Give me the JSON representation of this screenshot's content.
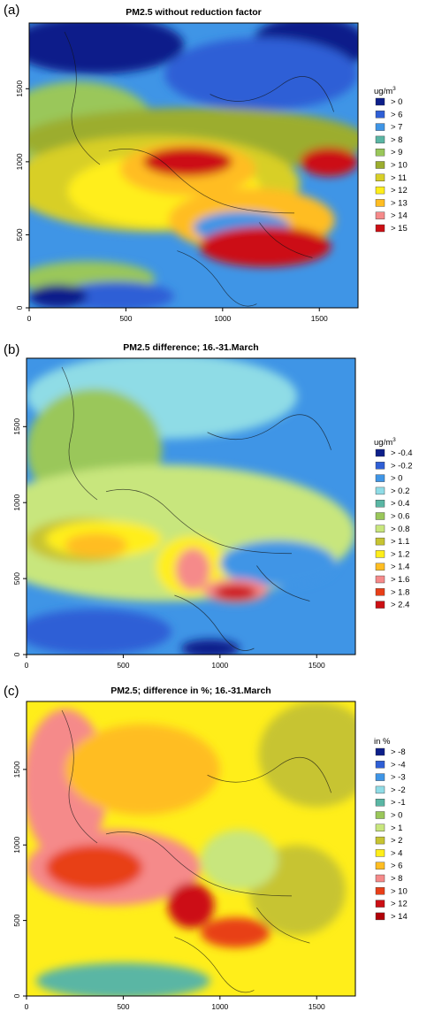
{
  "chart_data": [
    {
      "panel": "(a)",
      "type": "heatmap",
      "title": "PM2.5 without reduction factor",
      "legend_title": "ug/m",
      "legend_title_sup": "3",
      "legend_placement": "right",
      "x_ticks": [
        0,
        500,
        1000,
        1500
      ],
      "y_ticks": [
        0,
        500,
        1000,
        1500
      ],
      "xlim": [
        0,
        1700
      ],
      "ylim": [
        0,
        1950
      ],
      "bins": [
        {
          "label": "> 0",
          "color": "#0d1f8a"
        },
        {
          "label": "> 6",
          "color": "#2f5fd6"
        },
        {
          "label": "> 7",
          "color": "#3f95e6"
        },
        {
          "label": "> 8",
          "color": "#5ab6a4"
        },
        {
          "label": "> 9",
          "color": "#9ac75a"
        },
        {
          "label": "> 10",
          "color": "#9cad2e"
        },
        {
          "label": "> 11",
          "color": "#d8cf28"
        },
        {
          "label": "> 12",
          "color": "#ffee1a"
        },
        {
          "label": "> 13",
          "color": "#ffbd22"
        },
        {
          "label": "> 14",
          "color": "#f58a8a"
        },
        {
          "label": "> 15",
          "color": "#cc0f14"
        }
      ],
      "background_bin": 2,
      "regions": [
        {
          "bin": 0,
          "x": 350,
          "y": 1800,
          "rx": 450,
          "ry": 200
        },
        {
          "bin": 0,
          "x": 1450,
          "y": 1800,
          "rx": 300,
          "ry": 200
        },
        {
          "bin": 1,
          "x": 1200,
          "y": 1600,
          "rx": 500,
          "ry": 250
        },
        {
          "bin": 4,
          "x": 250,
          "y": 1250,
          "rx": 400,
          "ry": 300
        },
        {
          "bin": 5,
          "x": 850,
          "y": 1150,
          "rx": 900,
          "ry": 220
        },
        {
          "bin": 6,
          "x": 650,
          "y": 850,
          "rx": 750,
          "ry": 330
        },
        {
          "bin": 7,
          "x": 700,
          "y": 800,
          "rx": 500,
          "ry": 250
        },
        {
          "bin": 8,
          "x": 820,
          "y": 950,
          "rx": 350,
          "ry": 180
        },
        {
          "bin": 10,
          "x": 820,
          "y": 1000,
          "rx": 230,
          "ry": 100
        },
        {
          "bin": 10,
          "x": 1550,
          "y": 1000,
          "rx": 150,
          "ry": 100
        },
        {
          "bin": 8,
          "x": 1150,
          "y": 600,
          "rx": 430,
          "ry": 220
        },
        {
          "bin": 2,
          "x": 1100,
          "y": 550,
          "rx": 250,
          "ry": 110
        },
        {
          "bin": 10,
          "x": 1220,
          "y": 420,
          "rx": 340,
          "ry": 140
        },
        {
          "bin": 4,
          "x": 300,
          "y": 200,
          "rx": 350,
          "ry": 120
        },
        {
          "bin": 1,
          "x": 450,
          "y": 80,
          "rx": 300,
          "ry": 100
        },
        {
          "bin": 0,
          "x": 150,
          "y": 80,
          "rx": 150,
          "ry": 80
        }
      ]
    },
    {
      "panel": "(b)",
      "type": "heatmap",
      "title": "PM2.5 difference; 16.-31.March",
      "legend_title": "ug/m",
      "legend_title_sup": "3",
      "legend_placement": "right",
      "x_ticks": [
        0,
        500,
        1000,
        1500
      ],
      "y_ticks": [
        0,
        500,
        1000,
        1500
      ],
      "xlim": [
        0,
        1700
      ],
      "ylim": [
        0,
        1950
      ],
      "bins": [
        {
          "label": "> -0.4",
          "color": "#0d1f8a"
        },
        {
          "label": "> -0.2",
          "color": "#2f5fd6"
        },
        {
          "label": "> 0",
          "color": "#3f95e6"
        },
        {
          "label": "> 0.2",
          "color": "#8fdce6"
        },
        {
          "label": "> 0.4",
          "color": "#5ab6a4"
        },
        {
          "label": "> 0.6",
          "color": "#9ac75a"
        },
        {
          "label": "> 0.8",
          "color": "#c8e67d"
        },
        {
          "label": "> 1.1",
          "color": "#c7c431"
        },
        {
          "label": "> 1.2",
          "color": "#ffee1a"
        },
        {
          "label": "> 1.4",
          "color": "#ffbd22"
        },
        {
          "label": "> 1.6",
          "color": "#f58a8a"
        },
        {
          "label": "> 1.8",
          "color": "#e83f18"
        },
        {
          "label": "> 2.4",
          "color": "#cc0f14"
        }
      ],
      "background_bin": 2,
      "regions": [
        {
          "bin": 3,
          "x": 700,
          "y": 1700,
          "rx": 700,
          "ry": 280
        },
        {
          "bin": 5,
          "x": 350,
          "y": 1350,
          "rx": 350,
          "ry": 400
        },
        {
          "bin": 6,
          "x": 700,
          "y": 800,
          "rx": 1000,
          "ry": 450
        },
        {
          "bin": 7,
          "x": 300,
          "y": 750,
          "rx": 300,
          "ry": 150
        },
        {
          "bin": 8,
          "x": 400,
          "y": 760,
          "rx": 300,
          "ry": 120
        },
        {
          "bin": 9,
          "x": 360,
          "y": 720,
          "rx": 160,
          "ry": 80
        },
        {
          "bin": 8,
          "x": 850,
          "y": 580,
          "rx": 180,
          "ry": 200
        },
        {
          "bin": 10,
          "x": 860,
          "y": 560,
          "rx": 90,
          "ry": 140
        },
        {
          "bin": 2,
          "x": 1300,
          "y": 600,
          "rx": 300,
          "ry": 150
        },
        {
          "bin": 10,
          "x": 1080,
          "y": 420,
          "rx": 170,
          "ry": 80
        },
        {
          "bin": 12,
          "x": 1080,
          "y": 410,
          "rx": 110,
          "ry": 50
        },
        {
          "bin": 1,
          "x": 350,
          "y": 150,
          "rx": 400,
          "ry": 150
        },
        {
          "bin": 0,
          "x": 950,
          "y": 40,
          "rx": 150,
          "ry": 60
        }
      ]
    },
    {
      "panel": "(c)",
      "type": "heatmap",
      "title": "PM2.5; difference in %; 16.-31.March",
      "legend_title": "in %",
      "legend_title_sup": "",
      "legend_placement": "right",
      "x_ticks": [
        0,
        500,
        1000,
        1500
      ],
      "y_ticks": [
        0,
        500,
        1000,
        1500
      ],
      "xlim": [
        0,
        1700
      ],
      "ylim": [
        0,
        1950
      ],
      "bins": [
        {
          "label": "> -8",
          "color": "#0d1f8a"
        },
        {
          "label": "> -4",
          "color": "#2f5fd6"
        },
        {
          "label": "> -3",
          "color": "#3f95e6"
        },
        {
          "label": "> -2",
          "color": "#8fdce6"
        },
        {
          "label": "> -1",
          "color": "#5ab6a4"
        },
        {
          "label": "> 0",
          "color": "#9ac75a"
        },
        {
          "label": "> 1",
          "color": "#c8e67d"
        },
        {
          "label": "> 2",
          "color": "#c7c431"
        },
        {
          "label": "> 4",
          "color": "#ffee1a"
        },
        {
          "label": "> 6",
          "color": "#ffbd22"
        },
        {
          "label": "> 8",
          "color": "#f58a8a"
        },
        {
          "label": "> 10",
          "color": "#e83f18"
        },
        {
          "label": "> 12",
          "color": "#cc0f14"
        },
        {
          "label": "> 14",
          "color": "#b00008"
        }
      ],
      "background_bin": 8,
      "regions": [
        {
          "bin": 7,
          "x": 1500,
          "y": 1600,
          "rx": 300,
          "ry": 350
        },
        {
          "bin": 10,
          "x": 200,
          "y": 1400,
          "rx": 220,
          "ry": 500
        },
        {
          "bin": 9,
          "x": 600,
          "y": 1500,
          "rx": 400,
          "ry": 300
        },
        {
          "bin": 10,
          "x": 450,
          "y": 850,
          "rx": 450,
          "ry": 250
        },
        {
          "bin": 11,
          "x": 350,
          "y": 850,
          "rx": 250,
          "ry": 150
        },
        {
          "bin": 12,
          "x": 850,
          "y": 600,
          "rx": 120,
          "ry": 150
        },
        {
          "bin": 11,
          "x": 1080,
          "y": 420,
          "rx": 180,
          "ry": 100
        },
        {
          "bin": 7,
          "x": 1400,
          "y": 700,
          "rx": 250,
          "ry": 300
        },
        {
          "bin": 4,
          "x": 500,
          "y": 100,
          "rx": 450,
          "ry": 120
        },
        {
          "bin": 6,
          "x": 1100,
          "y": 900,
          "rx": 200,
          "ry": 200
        }
      ]
    }
  ]
}
